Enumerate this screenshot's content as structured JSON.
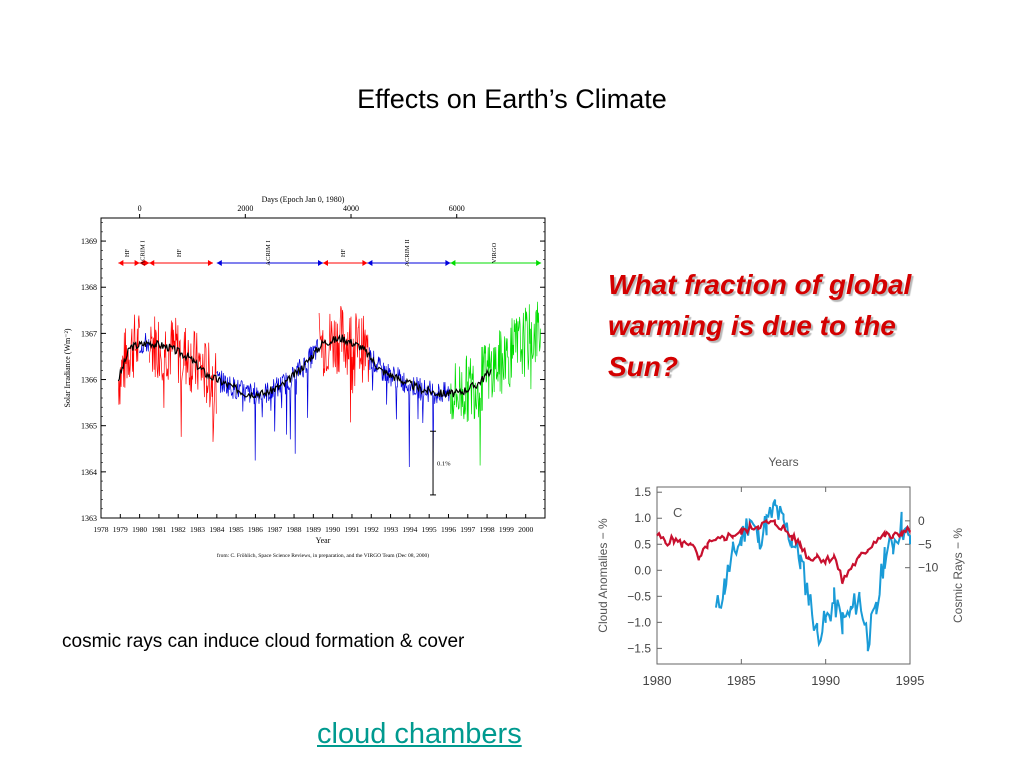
{
  "slide": {
    "title": "Effects on Earth’s Climate",
    "question": "What fraction of global warming is due to the Sun?",
    "caption": "cosmic rays can induce cloud formation & cover",
    "link_text": "cloud chambers"
  },
  "colors": {
    "question": "#d40000",
    "link": "#009a8f",
    "hf": "#ff0000",
    "acrim": "#0000dd",
    "virgo": "#00dd00",
    "smooth": "#000000",
    "cloud": "#1a9bd7",
    "cosmic": "#c8102e"
  },
  "chart_data": [
    {
      "type": "line",
      "top_axis_label": "Days (Epoch Jan 0, 1980)",
      "top_ticks": [
        "0",
        "2000",
        "4000",
        "6000"
      ],
      "top_tick_values": [
        0,
        2000,
        4000,
        6000
      ],
      "xlabel": "Year",
      "ylabel": "Solar Irradiance (Wm⁻²)",
      "ylim": [
        1363,
        1369.5
      ],
      "xlim": [
        1978,
        2001
      ],
      "yticks": [
        "1363",
        "1364",
        "1365",
        "1366",
        "1367",
        "1368",
        "1369"
      ],
      "xticks": [
        "1978",
        "1979",
        "1980",
        "1981",
        "1982",
        "1983",
        "1984",
        "1985",
        "1986",
        "1987",
        "1988",
        "1989",
        "1990",
        "1991",
        "1992",
        "1993",
        "1994",
        "1995",
        "1996",
        "1997",
        "1998",
        "1999",
        "2000"
      ],
      "instruments": [
        {
          "name": "HF",
          "start": 1978.9,
          "end": 1980.0,
          "color": "#ff0000"
        },
        {
          "name": "ACRIM I",
          "start": 1980.0,
          "end": 1980.5,
          "color": "#ff0000"
        },
        {
          "name": "HF",
          "start": 1980.5,
          "end": 1983.8,
          "color": "#ff0000"
        },
        {
          "name": "ACRIM I",
          "start": 1984.0,
          "end": 1989.5,
          "color": "#0000dd"
        },
        {
          "name": "HF",
          "start": 1989.5,
          "end": 1991.8,
          "color": "#ff0000"
        },
        {
          "name": "ACRIM II",
          "start": 1991.8,
          "end": 1996.1,
          "color": "#0000dd"
        },
        {
          "name": "VIRGO",
          "start": 1996.1,
          "end": 2000.8,
          "color": "#00dd00"
        }
      ],
      "series": [
        {
          "name": "HF",
          "color": "#ff0000",
          "segments": [
            [
              1978.9,
              1980.0
            ],
            [
              1980.5,
              1984.0
            ],
            [
              1989.3,
              1991.9
            ]
          ]
        },
        {
          "name": "ACRIM",
          "color": "#0000dd",
          "segments": [
            [
              1980.0,
              1980.5
            ],
            [
              1984.0,
              1989.3
            ],
            [
              1991.9,
              1996.1
            ]
          ]
        },
        {
          "name": "VIRGO",
          "color": "#00dd00",
          "segments": [
            [
              1996.1,
              2000.8
            ]
          ]
        }
      ],
      "smoothed": [
        [
          1978.9,
          1366.0
        ],
        [
          1979.5,
          1366.7
        ],
        [
          1980.5,
          1366.8
        ],
        [
          1981.5,
          1366.7
        ],
        [
          1982.5,
          1366.5
        ],
        [
          1983.5,
          1366.1
        ],
        [
          1984.5,
          1365.9
        ],
        [
          1985.5,
          1365.7
        ],
        [
          1986.5,
          1365.7
        ],
        [
          1987.5,
          1365.9
        ],
        [
          1988.5,
          1366.3
        ],
        [
          1989.5,
          1366.8
        ],
        [
          1990.5,
          1366.9
        ],
        [
          1991.5,
          1366.7
        ],
        [
          1992.5,
          1366.2
        ],
        [
          1993.5,
          1366.0
        ],
        [
          1994.5,
          1365.8
        ],
        [
          1995.5,
          1365.7
        ],
        [
          1996.5,
          1365.7
        ],
        [
          1997.5,
          1365.9
        ],
        [
          1998.2,
          1366.2
        ]
      ],
      "annotation": "0.1%",
      "footnote": "from: C. Fröhlich, Space Science Reviews, in preparation, and the VIRGO Team (Dec 08, 2000)"
    },
    {
      "type": "line",
      "top_axis_label": "Years",
      "panel_label": "C",
      "xticks": [
        "1980",
        "1985",
        "1990",
        "1995"
      ],
      "xtick_values": [
        1980,
        1985,
        1990,
        1995
      ],
      "xlim": [
        1980,
        1995
      ],
      "ylabel": "Cloud Anomalies − %",
      "ylim": [
        -1.8,
        1.6
      ],
      "yticks": [
        "1.5",
        "1.0",
        "0.5",
        "0.0",
        "−0.5",
        "−1.0",
        "−1.5"
      ],
      "ytick_values": [
        1.5,
        1.0,
        0.5,
        0.0,
        -0.5,
        -1.0,
        -1.5
      ],
      "y2label": "Cosmic Rays − %",
      "y2ticks": [
        "0",
        "−5",
        "−10"
      ],
      "y2tick_values": [
        0,
        -5,
        -10
      ],
      "series": [
        {
          "name": "Cloud Anomalies",
          "color": "#1a9bd7",
          "x": [
            1983.5,
            1984.0,
            1984.5,
            1985.0,
            1985.5,
            1986.0,
            1986.5,
            1987.0,
            1987.5,
            1988.0,
            1988.5,
            1989.0,
            1989.5,
            1990.0,
            1990.5,
            1991.0,
            1991.5,
            1992.0,
            1992.5,
            1993.0,
            1993.5,
            1994.0,
            1994.5,
            1995.0
          ],
          "y": [
            -0.8,
            -0.3,
            0.3,
            0.6,
            1.0,
            0.6,
            0.9,
            1.2,
            0.9,
            0.6,
            0.2,
            -0.5,
            -1.2,
            -1.0,
            -0.6,
            -1.0,
            -0.8,
            -0.5,
            -1.3,
            -0.8,
            0.3,
            0.5,
            0.9,
            0.5
          ]
        },
        {
          "name": "Cosmic Rays",
          "color": "#c8102e",
          "x": [
            1980.0,
            1980.5,
            1981.0,
            1981.5,
            1982.0,
            1982.5,
            1983.0,
            1983.5,
            1984.0,
            1984.5,
            1985.0,
            1985.5,
            1986.0,
            1986.5,
            1987.0,
            1987.5,
            1988.0,
            1988.5,
            1989.0,
            1989.5,
            1990.0,
            1990.5,
            1991.0,
            1991.5,
            1992.0,
            1992.5,
            1993.0,
            1993.5,
            1994.0,
            1994.5,
            1995.0
          ],
          "y": [
            -3.0,
            -4.5,
            -4.0,
            -5.0,
            -4.5,
            -8.5,
            -5.0,
            -4.5,
            -3.5,
            -3.0,
            -2.5,
            -1.5,
            -1.0,
            -0.5,
            -0.5,
            -1.5,
            -3.5,
            -5.0,
            -8.0,
            -7.5,
            -8.5,
            -7.5,
            -13.0,
            -10.0,
            -8.0,
            -6.0,
            -4.0,
            -3.0,
            -3.5,
            -2.5,
            -2.0
          ]
        }
      ]
    }
  ]
}
